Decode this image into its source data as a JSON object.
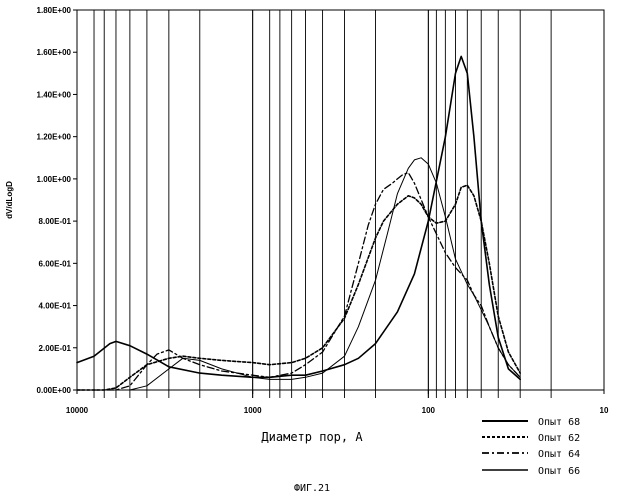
{
  "chart_data": {
    "type": "line",
    "xlabel": "Диаметр пор, А",
    "ylabel": "dV/dLogD",
    "caption": "ФИГ.21",
    "x_scale": "log",
    "x_reversed": true,
    "xlim": [
      10000,
      10
    ],
    "ylim": [
      0,
      1.8
    ],
    "x_ticks": [
      10000,
      1000,
      100,
      10
    ],
    "x_tick_labels": [
      "10000",
      "1000",
      "100",
      "10"
    ],
    "y_ticks": [
      0,
      0.2,
      0.4,
      0.6,
      0.8,
      1.0,
      1.2,
      1.4,
      1.6,
      1.8
    ],
    "y_tick_labels": [
      "0.00E+00",
      "2.00E-01",
      "4.00E-01",
      "6.00E-01",
      "8.00E-01",
      "1.00E+00",
      "1.20E+00",
      "1.40E+00",
      "1.60E+00",
      "1.80E+00"
    ],
    "grid_x": [
      8000,
      7000,
      6000,
      5000,
      4000,
      3000,
      2000,
      1000,
      800,
      700,
      600,
      500,
      400,
      300,
      200,
      100,
      90,
      80,
      70,
      60,
      50,
      40,
      30,
      20
    ],
    "legend_position": "bottom-right",
    "series": [
      {
        "name": "Опыт 68",
        "style": "solid",
        "x": [
          10000,
          8000,
          6500,
          6000,
          5000,
          4000,
          3000,
          2000,
          1500,
          1000,
          800,
          600,
          500,
          400,
          300,
          250,
          200,
          150,
          120,
          100,
          80,
          70,
          65,
          60,
          55,
          50,
          45,
          40,
          35,
          30
        ],
        "y": [
          0.13,
          0.16,
          0.22,
          0.23,
          0.21,
          0.17,
          0.11,
          0.08,
          0.07,
          0.06,
          0.06,
          0.07,
          0.07,
          0.09,
          0.12,
          0.15,
          0.22,
          0.37,
          0.55,
          0.8,
          1.2,
          1.5,
          1.58,
          1.5,
          1.2,
          0.8,
          0.5,
          0.25,
          0.1,
          0.05
        ]
      },
      {
        "name": "Опыт 62",
        "style": "short-dash",
        "x": [
          10000,
          7000,
          6000,
          5000,
          4000,
          3000,
          2500,
          2000,
          1500,
          1000,
          800,
          600,
          500,
          400,
          300,
          250,
          200,
          180,
          150,
          130,
          120,
          110,
          100,
          90,
          80,
          70,
          65,
          60,
          55,
          50,
          45,
          40,
          35,
          30
        ],
        "y": [
          0.0,
          0.0,
          0.01,
          0.06,
          0.12,
          0.15,
          0.16,
          0.15,
          0.14,
          0.13,
          0.12,
          0.13,
          0.15,
          0.2,
          0.34,
          0.5,
          0.72,
          0.8,
          0.88,
          0.92,
          0.91,
          0.88,
          0.82,
          0.79,
          0.8,
          0.88,
          0.96,
          0.97,
          0.92,
          0.8,
          0.6,
          0.35,
          0.18,
          0.08
        ]
      },
      {
        "name": "Опыт 64",
        "style": "dash-dot",
        "x": [
          10000,
          6000,
          5000,
          4000,
          3500,
          3000,
          2500,
          2000,
          1500,
          1000,
          800,
          600,
          500,
          400,
          300,
          250,
          220,
          200,
          180,
          160,
          150,
          140,
          130,
          120,
          100,
          80,
          70,
          60,
          55,
          50,
          45,
          40,
          35,
          30
        ],
        "y": [
          0.0,
          0.0,
          0.02,
          0.12,
          0.17,
          0.19,
          0.15,
          0.12,
          0.09,
          0.07,
          0.06,
          0.08,
          0.12,
          0.18,
          0.35,
          0.6,
          0.78,
          0.88,
          0.95,
          0.98,
          1.0,
          1.02,
          1.03,
          0.98,
          0.82,
          0.65,
          0.58,
          0.52,
          0.45,
          0.4,
          0.3,
          0.2,
          0.12,
          0.06
        ]
      },
      {
        "name": "Опыт 66",
        "style": "thin-solid",
        "x": [
          10000,
          5000,
          4000,
          3000,
          2500,
          2000,
          1500,
          1000,
          800,
          600,
          500,
          400,
          300,
          250,
          200,
          170,
          150,
          130,
          120,
          110,
          100,
          90,
          80,
          70,
          60,
          55,
          50,
          45,
          40,
          35,
          30
        ],
        "y": [
          0.0,
          0.0,
          0.02,
          0.1,
          0.15,
          0.14,
          0.1,
          0.06,
          0.05,
          0.05,
          0.06,
          0.08,
          0.16,
          0.3,
          0.52,
          0.75,
          0.93,
          1.05,
          1.09,
          1.1,
          1.07,
          0.98,
          0.82,
          0.62,
          0.5,
          0.45,
          0.38,
          0.3,
          0.2,
          0.12,
          0.06
        ]
      }
    ]
  }
}
